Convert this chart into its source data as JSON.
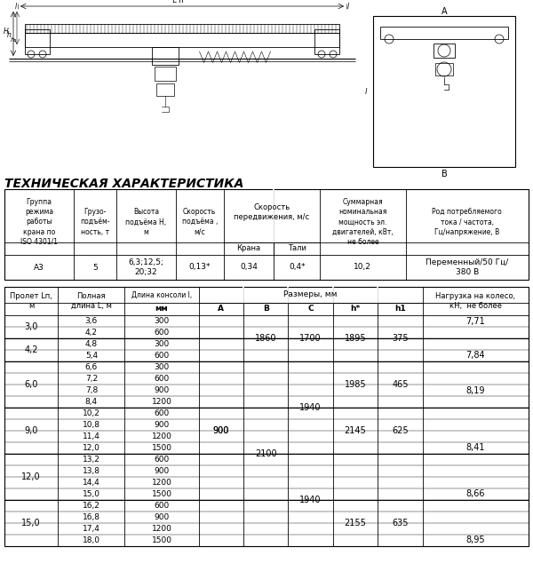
{
  "title": "ТЕХНИЧЕСКАЯ ХАРАКТЕРИСТИКА",
  "tech_headers": [
    "Группа\nрежима\nработы\nкрана по\nISO 4301/1",
    "Грузо-\nподъём-\nность, т",
    "Высота\nподъёма Н,\nм",
    "Скорость\nподъёма ,\nм/с",
    "Скорость\nпередвижения, м/с",
    "Суммарная\nноминальная\nмощность эл.\nдвигателей, кВт,\nне более",
    "Род потребляемого\nтока / частота,\nГц/напряжение, В"
  ],
  "tech_subheaders": [
    "Крана",
    "Тали"
  ],
  "tech_data": [
    "А3",
    "5",
    "6,3;12,5;\n20;32",
    "0,13*",
    "0,34",
    "0,4*",
    "10,2",
    "Переменный/50 Гц/\n380 В"
  ],
  "tech_col_widths": [
    65,
    40,
    55,
    45,
    47,
    43,
    80,
    115
  ],
  "dim_span_groups": [
    {
      "span": "3,0",
      "rows": [
        [
          "3,6",
          "300"
        ],
        [
          "4,2",
          "600"
        ]
      ],
      "A": "",
      "load_row": 0,
      "load": "7,71"
    },
    {
      "span": "4,2",
      "rows": [
        [
          "4,8",
          "300"
        ],
        [
          "5,4",
          "600"
        ]
      ],
      "A": "",
      "load_row": 1,
      "load": "7,84"
    },
    {
      "span": "6,0",
      "rows": [
        [
          "6,6",
          "300"
        ],
        [
          "7,2",
          "600"
        ],
        [
          "7,8",
          "900"
        ],
        [
          "8,4",
          "1200"
        ]
      ],
      "A": "",
      "load_row": 2,
      "load": "8,19"
    },
    {
      "span": "9,0",
      "rows": [
        [
          "10,2",
          "600"
        ],
        [
          "10,8",
          "900"
        ],
        [
          "11,4",
          "1200"
        ],
        [
          "12,0",
          "1500"
        ]
      ],
      "A": "900",
      "load_row": 3,
      "load": "8,41"
    },
    {
      "span": "12,0",
      "rows": [
        [
          "13,2",
          "600"
        ],
        [
          "13,8",
          "900"
        ],
        [
          "14,4",
          "1200"
        ],
        [
          "15,0",
          "1500"
        ]
      ],
      "A": "",
      "load_row": 3,
      "load": "8,66"
    },
    {
      "span": "15,0",
      "rows": [
        [
          "16,2",
          "600"
        ],
        [
          "16,8",
          "900"
        ],
        [
          "17,4",
          "1200"
        ],
        [
          "18,0",
          "1500"
        ]
      ],
      "A": "",
      "load_row": 3,
      "load": "8,95"
    }
  ],
  "B_groups": [
    {
      "rows": [
        0,
        4
      ],
      "B": "1860",
      "C": "1700"
    },
    {
      "rows": [
        4,
        20
      ],
      "B": "2100",
      "C": "1940"
    }
  ],
  "C_groups": [
    {
      "rows": [
        4,
        12
      ],
      "C": "1940"
    },
    {
      "rows": [
        12,
        20
      ],
      "C": "1940"
    }
  ],
  "h_groups": [
    {
      "rows": [
        0,
        4
      ],
      "h": "1895",
      "h1": "375"
    },
    {
      "rows": [
        4,
        8
      ],
      "h": "1985",
      "h1": "465"
    },
    {
      "rows": [
        8,
        12
      ],
      "h": "2145",
      "h1": "625"
    },
    {
      "rows": [
        16,
        20
      ],
      "h": "2155",
      "h1": "635"
    }
  ],
  "bg_color": "#ffffff",
  "text_color": "#000000"
}
